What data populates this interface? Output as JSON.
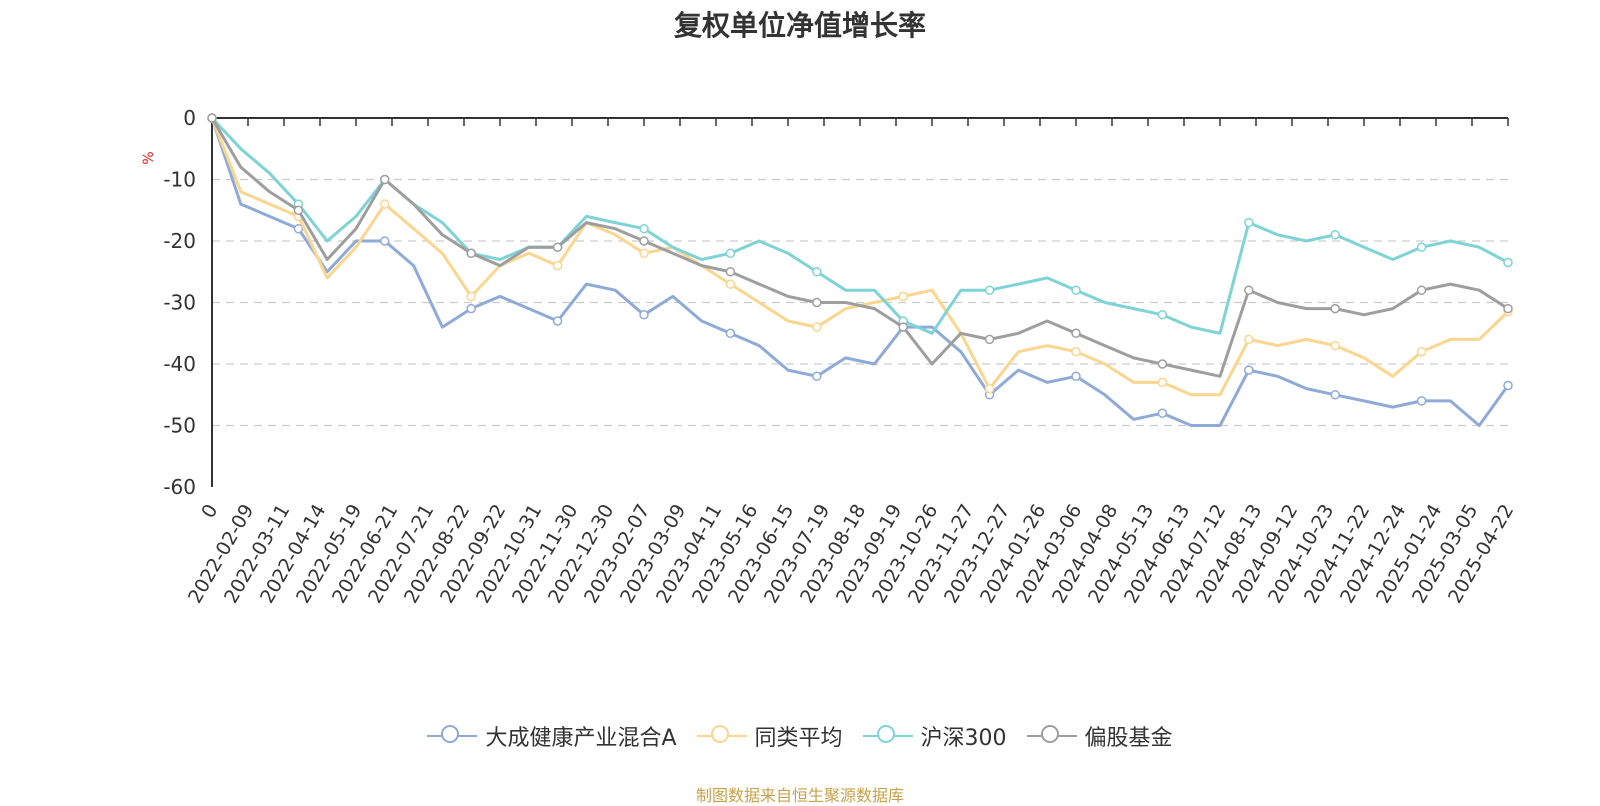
{
  "source_note": "制图数据来自恒生聚源数据库",
  "source_color": "#c8a14a",
  "chart_data": {
    "type": "line",
    "title": "复权单位净值增长率",
    "ylabel": "%",
    "ylabel_color": "#e02020",
    "ylim": [
      -60,
      0
    ],
    "yticks": [
      0,
      -10,
      -20,
      -30,
      -40,
      -50,
      -60
    ],
    "grid": true,
    "legend_position": "bottom",
    "x_start_label": "0",
    "xlabels": [
      "2022-02-09",
      "2022-03-11",
      "2022-04-14",
      "2022-05-19",
      "2022-06-21",
      "2022-07-21",
      "2022-08-22",
      "2022-09-22",
      "2022-10-31",
      "2022-11-30",
      "2022-12-30",
      "2023-02-07",
      "2023-03-09",
      "2023-04-11",
      "2023-05-16",
      "2023-06-15",
      "2023-07-19",
      "2023-08-18",
      "2023-09-19",
      "2023-10-26",
      "2023-11-27",
      "2023-12-27",
      "2024-01-26",
      "2024-03-06",
      "2024-04-08",
      "2024-05-13",
      "2024-06-13",
      "2024-07-12",
      "2024-08-13",
      "2024-09-12",
      "2024-10-23",
      "2024-11-22",
      "2024-12-24",
      "2025-01-24",
      "2025-03-05",
      "2025-04-22"
    ],
    "series": [
      {
        "name": "大成健康产业混合A",
        "color": "#8eaad8",
        "values": [
          0,
          -14,
          -16,
          -18,
          -25,
          -20,
          -20,
          -24,
          -34,
          -31,
          -29,
          -31,
          -33,
          -27,
          -28,
          -32,
          -29,
          -33,
          -35,
          -37,
          -41,
          -42,
          -39,
          -40,
          -34,
          -34,
          -38,
          -45,
          -41,
          -43,
          -42,
          -45,
          -49,
          -48,
          -50,
          -50,
          -41,
          -42,
          -44,
          -45,
          -46,
          -47,
          -46,
          -46,
          -50,
          -43.5
        ]
      },
      {
        "name": "同类平均",
        "color": "#fcd58e",
        "values": [
          0,
          -12,
          -14,
          -16,
          -26,
          -21,
          -14,
          -18,
          -22,
          -29,
          -24,
          -22,
          -24,
          -17,
          -19,
          -22,
          -21,
          -24,
          -27,
          -30,
          -33,
          -34,
          -31,
          -30,
          -29,
          -28,
          -35,
          -44,
          -38,
          -37,
          -38,
          -40,
          -43,
          -43,
          -45,
          -45,
          -36,
          -37,
          -36,
          -37,
          -39,
          -42,
          -38,
          -36,
          -36,
          -31.5
        ]
      },
      {
        "name": "沪深300",
        "color": "#7dd3d6",
        "values": [
          0,
          -5,
          -9,
          -14,
          -20,
          -16,
          -10,
          -14,
          -17,
          -22,
          -23,
          -21,
          -21,
          -16,
          -17,
          -18,
          -21,
          -23,
          -22,
          -20,
          -22,
          -25,
          -28,
          -28,
          -33,
          -35,
          -28,
          -28,
          -27,
          -26,
          -28,
          -30,
          -31,
          -32,
          -34,
          -35,
          -17,
          -19,
          -20,
          -19,
          -21,
          -23,
          -21,
          -20,
          -21,
          -23.5
        ]
      },
      {
        "name": "偏股基金",
        "color": "#9e9e9e",
        "values": [
          0,
          -8,
          -12,
          -15,
          -23,
          -18,
          -10,
          -14,
          -19,
          -22,
          -24,
          -21,
          -21,
          -17,
          -18,
          -20,
          -22,
          -24,
          -25,
          -27,
          -29,
          -30,
          -30,
          -31,
          -34,
          -40,
          -35,
          -36,
          -35,
          -33,
          -35,
          -37,
          -39,
          -40,
          -41,
          -42,
          -28,
          -30,
          -31,
          -31,
          -32,
          -31,
          -28,
          -27,
          -28,
          -31
        ]
      }
    ]
  }
}
